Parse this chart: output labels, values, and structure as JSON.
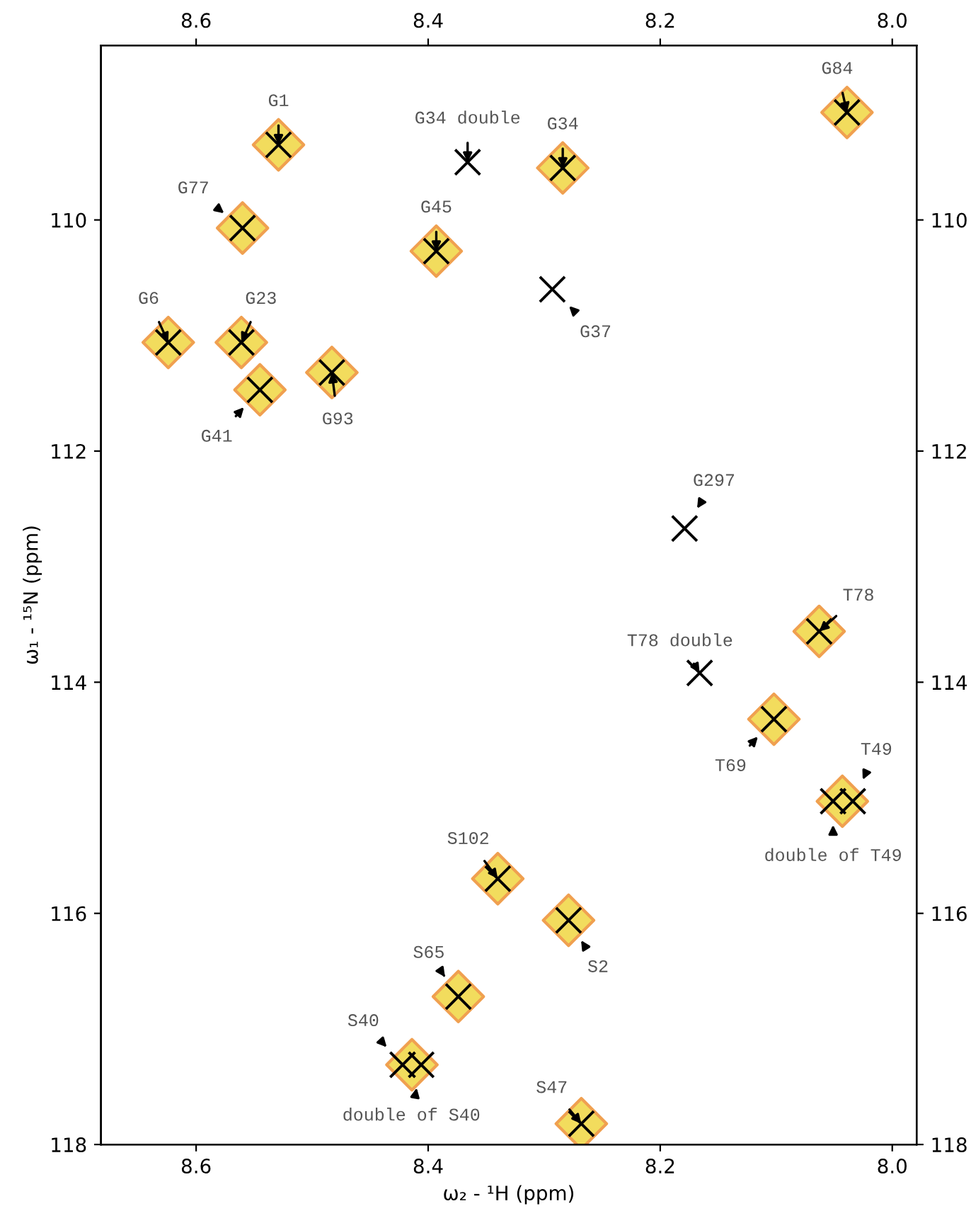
{
  "chart_data": {
    "type": "scatter",
    "xlabel": "ω₂ - ¹H (ppm)",
    "ylabel": "ω₁ - ¹⁵N (ppm)",
    "xlim": [
      8.682,
      7.979
    ],
    "ylim": [
      118,
      108.49
    ],
    "xticks": [
      8.6,
      8.4,
      8.2,
      {
        "value": 8.0,
        "label": "8.0"
      }
    ],
    "yticks": [
      110,
      112,
      114,
      116,
      118
    ],
    "x2lim": [
      8.682,
      7.979
    ],
    "x2ticks": [
      8.6,
      8.4,
      8.2,
      {
        "value": 8.0,
        "label": "8.0"
      }
    ],
    "y2lim": [
      118,
      108.49
    ],
    "y2ticks": [
      110,
      112,
      114,
      116,
      118
    ],
    "grid": false,
    "legend": false,
    "series": [
      {
        "type": "scatter",
        "marker": "diamond",
        "color": "#f2dc5d",
        "x": [
          8.529,
          8.039,
          8.284,
          8.56,
          8.393,
          8.624,
          8.561,
          8.545,
          8.483,
          8.063,
          8.102,
          8.043,
          8.34,
          8.279,
          8.374,
          8.414,
          8.268
        ],
        "values": [
          109.35,
          109.07,
          109.55,
          110.07,
          110.27,
          111.06,
          111.06,
          111.47,
          111.32,
          113.56,
          114.32,
          115.03,
          115.7,
          116.06,
          116.72,
          117.31,
          117.82
        ]
      },
      {
        "type": "scatter",
        "marker": "cross",
        "color": "#000000",
        "x": [
          8.529,
          8.039,
          8.366,
          8.284,
          8.56,
          8.393,
          8.293,
          8.624,
          8.561,
          8.545,
          8.483,
          8.179,
          8.063,
          8.166,
          8.102,
          8.051,
          8.034,
          8.34,
          8.279,
          8.374,
          8.422,
          8.406,
          8.268
        ],
        "values": [
          109.35,
          109.07,
          109.5,
          109.55,
          110.07,
          110.27,
          110.6,
          111.06,
          111.06,
          111.47,
          111.32,
          112.67,
          113.56,
          113.92,
          114.32,
          115.03,
          115.03,
          115.7,
          116.06,
          116.72,
          117.31,
          117.31,
          117.82
        ]
      }
    ],
    "annotations": [
      {
        "text": "G1",
        "x": 8.529,
        "y": 109.35
      },
      {
        "text": "G84",
        "x": 8.039,
        "y": 109.07
      },
      {
        "text": "G34 double",
        "x": 8.366,
        "y": 109.5
      },
      {
        "text": "G34",
        "x": 8.284,
        "y": 109.55
      },
      {
        "text": "G77",
        "x": 8.56,
        "y": 110.07
      },
      {
        "text": "G45",
        "x": 8.393,
        "y": 110.27
      },
      {
        "text": "G37",
        "x": 8.293,
        "y": 110.6
      },
      {
        "text": "G6",
        "x": 8.624,
        "y": 111.06
      },
      {
        "text": "G23",
        "x": 8.561,
        "y": 111.06
      },
      {
        "text": "G41",
        "x": 8.545,
        "y": 111.47
      },
      {
        "text": "G93",
        "x": 8.483,
        "y": 111.32
      },
      {
        "text": "G297",
        "x": 8.179,
        "y": 112.67
      },
      {
        "text": "T78",
        "x": 8.063,
        "y": 113.56
      },
      {
        "text": "T78 double",
        "x": 8.166,
        "y": 113.92
      },
      {
        "text": "T69",
        "x": 8.102,
        "y": 114.32
      },
      {
        "text": "T49",
        "x": 8.034,
        "y": 115.03
      },
      {
        "text": "double of T49",
        "x": 8.051,
        "y": 115.03
      },
      {
        "text": "S102",
        "x": 8.34,
        "y": 115.7
      },
      {
        "text": "S2",
        "x": 8.279,
        "y": 116.06
      },
      {
        "text": "S65",
        "x": 8.374,
        "y": 116.72
      },
      {
        "text": "S40",
        "x": 8.422,
        "y": 117.31
      },
      {
        "text": "double of S40",
        "x": 8.406,
        "y": 117.31
      },
      {
        "text": "S47",
        "x": 8.268,
        "y": 117.82
      }
    ]
  }
}
